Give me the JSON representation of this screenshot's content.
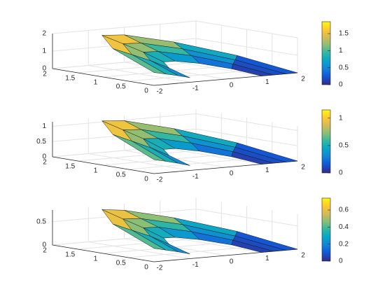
{
  "chart_data": [
    {
      "type": "surface",
      "colormap": "parula",
      "grid": true,
      "x": [
        [
          1,
          0.87,
          0.5,
          0,
          -0.5,
          -0.87,
          -1
        ],
        [
          1.33,
          1.15,
          0.67,
          0,
          -0.67,
          -1.15,
          -1.33
        ],
        [
          1.67,
          1.44,
          0.83,
          0,
          -0.83,
          -1.44,
          -1.67
        ],
        [
          2,
          1.73,
          1,
          0,
          -1,
          -1.73,
          -2
        ]
      ],
      "y": [
        [
          0,
          0.5,
          0.87,
          1,
          0.87,
          0.5,
          0
        ],
        [
          0,
          0.67,
          1.15,
          1.33,
          1.15,
          0.67,
          0
        ],
        [
          0,
          0.83,
          1.44,
          1.67,
          1.44,
          0.83,
          0
        ],
        [
          0,
          1,
          1.73,
          2,
          1.73,
          1,
          0
        ]
      ],
      "z": [
        [
          0,
          0.19,
          0.39,
          0.55,
          0.65,
          0.55,
          0.26
        ],
        [
          0,
          0.33,
          0.67,
          0.94,
          1.11,
          0.94,
          0.44
        ],
        [
          0,
          0.44,
          0.89,
          1.26,
          1.48,
          1.26,
          0.59
        ],
        [
          0,
          0.56,
          1.11,
          1.57,
          1.85,
          1.57,
          0.74
        ]
      ],
      "xlim": [
        -2,
        2
      ],
      "ylim": [
        0,
        2
      ],
      "zlim": [
        0,
        2
      ],
      "xticks": [
        -2,
        -1,
        0,
        1,
        2
      ],
      "yticks": [
        0,
        0.5,
        1,
        1.5,
        2
      ],
      "zticks": [
        0,
        1,
        2
      ],
      "clim": [
        0,
        1.85
      ],
      "cticks": [
        0,
        0.5,
        1,
        1.5
      ]
    },
    {
      "type": "surface",
      "colormap": "parula",
      "grid": true,
      "x": [
        [
          1,
          0.87,
          0.5,
          0,
          -0.5,
          -0.87,
          -1
        ],
        [
          1.33,
          1.15,
          0.67,
          0,
          -0.67,
          -1.15,
          -1.33
        ],
        [
          1.67,
          1.44,
          0.83,
          0,
          -0.83,
          -1.44,
          -1.67
        ],
        [
          2,
          1.73,
          1,
          0,
          -1,
          -1.73,
          -2
        ]
      ],
      "y": [
        [
          0,
          0.5,
          0.87,
          1,
          0.87,
          0.5,
          0
        ],
        [
          0,
          0.67,
          1.15,
          1.33,
          1.15,
          0.67,
          0
        ],
        [
          0,
          0.83,
          1.44,
          1.67,
          1.44,
          0.83,
          0
        ],
        [
          0,
          1,
          1.73,
          2,
          1.73,
          1,
          0
        ]
      ],
      "z": [
        [
          0,
          0.12,
          0.24,
          0.34,
          0.4,
          0.34,
          0.16
        ],
        [
          0,
          0.21,
          0.41,
          0.58,
          0.69,
          0.58,
          0.27
        ],
        [
          0,
          0.28,
          0.55,
          0.78,
          0.92,
          0.78,
          0.37
        ],
        [
          0,
          0.35,
          0.69,
          0.98,
          1.15,
          0.98,
          0.46
        ]
      ],
      "xlim": [
        -2,
        2
      ],
      "ylim": [
        0,
        2
      ],
      "zlim": [
        0,
        1.15
      ],
      "xticks": [
        -2,
        -1,
        0,
        1,
        2
      ],
      "yticks": [
        0,
        0.5,
        1,
        1.5,
        2
      ],
      "zticks": [
        0,
        0.5,
        1
      ],
      "clim": [
        0,
        1.15
      ],
      "cticks": [
        0,
        0.5,
        1
      ]
    },
    {
      "type": "surface",
      "colormap": "parula",
      "grid": true,
      "x": [
        [
          1,
          0.87,
          0.5,
          0,
          -0.5,
          -0.87,
          -1
        ],
        [
          1.33,
          1.15,
          0.67,
          0,
          -0.67,
          -1.15,
          -1.33
        ],
        [
          1.67,
          1.44,
          0.83,
          0,
          -0.83,
          -1.44,
          -1.67
        ],
        [
          2,
          1.73,
          1,
          0,
          -1,
          -1.73,
          -2
        ]
      ],
      "y": [
        [
          0,
          0.5,
          0.87,
          1,
          0.87,
          0.5,
          0
        ],
        [
          0,
          0.67,
          1.15,
          1.33,
          1.15,
          0.67,
          0
        ],
        [
          0,
          0.83,
          1.44,
          1.67,
          1.44,
          0.83,
          0
        ],
        [
          0,
          1,
          1.73,
          2,
          1.73,
          1,
          0
        ]
      ],
      "z": [
        [
          0,
          0.08,
          0.15,
          0.21,
          0.25,
          0.21,
          0.1
        ],
        [
          0,
          0.13,
          0.26,
          0.37,
          0.43,
          0.37,
          0.17
        ],
        [
          0,
          0.17,
          0.35,
          0.49,
          0.58,
          0.49,
          0.23
        ],
        [
          0,
          0.22,
          0.43,
          0.61,
          0.74,
          0.61,
          0.29
        ]
      ],
      "xlim": [
        -2,
        2
      ],
      "ylim": [
        0,
        2
      ],
      "zlim": [
        0,
        0.75
      ],
      "xticks": [
        -2,
        -1,
        0,
        1,
        2
      ],
      "yticks": [
        0,
        0.5,
        1,
        1.5,
        2
      ],
      "zticks": [
        0,
        0.5
      ],
      "clim": [
        0,
        0.74
      ],
      "cticks": [
        0,
        0.2,
        0.4,
        0.6
      ]
    }
  ]
}
